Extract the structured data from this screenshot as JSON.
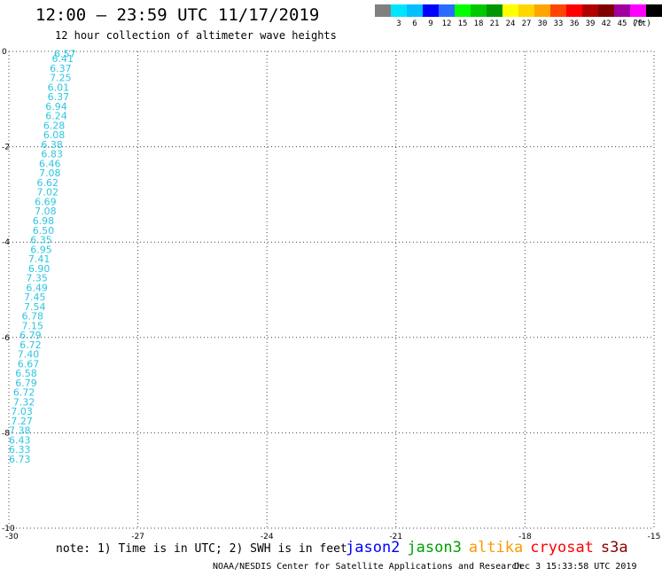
{
  "header": {
    "title": "12:00 – 23:59 UTC 11/17/2019",
    "subtitle": "12 hour collection of altimeter wave heights"
  },
  "colorbar": {
    "unit": "(ft)",
    "bins": [
      {
        "label": "",
        "color": "#808080"
      },
      {
        "label": "3",
        "color": "#00e5ff"
      },
      {
        "label": "6",
        "color": "#00bfff"
      },
      {
        "label": "9",
        "color": "#0000ff"
      },
      {
        "label": "12",
        "color": "#2a6cff"
      },
      {
        "label": "15",
        "color": "#00ff00"
      },
      {
        "label": "18",
        "color": "#00c800"
      },
      {
        "label": "21",
        "color": "#009600"
      },
      {
        "label": "24",
        "color": "#ffff00"
      },
      {
        "label": "27",
        "color": "#ffd700"
      },
      {
        "label": "30",
        "color": "#ffa500"
      },
      {
        "label": "33",
        "color": "#ff4500"
      },
      {
        "label": "36",
        "color": "#ff0000"
      },
      {
        "label": "39",
        "color": "#b00000"
      },
      {
        "label": "42",
        "color": "#800000"
      },
      {
        "label": "45",
        "color": "#a000a0"
      },
      {
        "label": "70",
        "color": "#ff00ff"
      },
      {
        "label": "",
        "color": "#000000"
      }
    ]
  },
  "chart_data": {
    "type": "scatter",
    "xlim": [
      -30,
      -15
    ],
    "ylim": [
      -10,
      0
    ],
    "xticks": [
      -30,
      -27,
      -24,
      -21,
      -18,
      -15
    ],
    "yticks": [
      0,
      -2,
      -4,
      -6,
      -8,
      -10
    ],
    "grid": true,
    "tracks": [
      {
        "satellite": "jason3",
        "color": "#2cc6e0",
        "points": [
          {
            "x": -28.95,
            "y": -0.05,
            "v": "6.57"
          },
          {
            "x": -29.0,
            "y": -0.15,
            "v": "6.41"
          },
          {
            "x": -29.05,
            "y": -0.35,
            "v": "6.37"
          },
          {
            "x": -29.05,
            "y": -0.55,
            "v": "7.25"
          },
          {
            "x": -29.1,
            "y": -0.75,
            "v": "6.01"
          },
          {
            "x": -29.1,
            "y": -0.95,
            "v": "6.37"
          },
          {
            "x": -29.15,
            "y": -1.15,
            "v": "6.94"
          },
          {
            "x": -29.15,
            "y": -1.35,
            "v": "6.24"
          },
          {
            "x": -29.2,
            "y": -1.55,
            "v": "6.28"
          },
          {
            "x": -29.2,
            "y": -1.75,
            "v": "6.08"
          },
          {
            "x": -29.25,
            "y": -1.95,
            "v": "6.38"
          },
          {
            "x": -29.25,
            "y": -2.15,
            "v": "6.83"
          },
          {
            "x": -29.3,
            "y": -2.35,
            "v": "6.46"
          },
          {
            "x": -29.3,
            "y": -2.55,
            "v": "7.08"
          },
          {
            "x": -29.35,
            "y": -2.75,
            "v": "6.62"
          },
          {
            "x": -29.35,
            "y": -2.95,
            "v": "7.02"
          },
          {
            "x": -29.4,
            "y": -3.15,
            "v": "6.69"
          },
          {
            "x": -29.4,
            "y": -3.35,
            "v": "7.08"
          },
          {
            "x": -29.45,
            "y": -3.55,
            "v": "6.98"
          },
          {
            "x": -29.45,
            "y": -3.75,
            "v": "6.50"
          },
          {
            "x": -29.5,
            "y": -3.95,
            "v": "6.35"
          },
          {
            "x": -29.5,
            "y": -4.15,
            "v": "6.95"
          },
          {
            "x": -29.55,
            "y": -4.35,
            "v": "7.41"
          },
          {
            "x": -29.55,
            "y": -4.55,
            "v": "6.90"
          },
          {
            "x": -29.6,
            "y": -4.75,
            "v": "7.35"
          },
          {
            "x": -29.6,
            "y": -4.95,
            "v": "6.49"
          },
          {
            "x": -29.65,
            "y": -5.15,
            "v": "7.45"
          },
          {
            "x": -29.65,
            "y": -5.35,
            "v": "7.54"
          },
          {
            "x": -29.7,
            "y": -5.55,
            "v": "6.78"
          },
          {
            "x": -29.7,
            "y": -5.75,
            "v": "7.15"
          },
          {
            "x": -29.75,
            "y": -5.95,
            "v": "6.79"
          },
          {
            "x": -29.75,
            "y": -6.15,
            "v": "6.72"
          },
          {
            "x": -29.8,
            "y": -6.35,
            "v": "7.40"
          },
          {
            "x": -29.8,
            "y": -6.55,
            "v": "6.67"
          },
          {
            "x": -29.85,
            "y": -6.75,
            "v": "6.58"
          },
          {
            "x": -29.85,
            "y": -6.95,
            "v": "6.79"
          },
          {
            "x": -29.9,
            "y": -7.15,
            "v": "6.72"
          },
          {
            "x": -29.9,
            "y": -7.35,
            "v": "7.32"
          },
          {
            "x": -29.95,
            "y": -7.55,
            "v": "7.03"
          },
          {
            "x": -29.95,
            "y": -7.75,
            "v": "7.27"
          },
          {
            "x": -30.0,
            "y": -7.95,
            "v": "7.38"
          },
          {
            "x": -30.0,
            "y": -8.15,
            "v": "6.43"
          },
          {
            "x": -30.0,
            "y": -8.35,
            "v": "6.33"
          },
          {
            "x": -30.0,
            "y": -8.55,
            "v": "6.73"
          }
        ]
      }
    ]
  },
  "note": "note: 1) Time is in UTC; 2) SWH is in feet",
  "legend": [
    {
      "label": "jason2",
      "color": "#0000ff"
    },
    {
      "label": "jason3",
      "color": "#00a000"
    },
    {
      "label": "altika",
      "color": "#ff9900"
    },
    {
      "label": "cryosat",
      "color": "#ff0000"
    },
    {
      "label": "s3a",
      "color": "#880000"
    }
  ],
  "footer": {
    "credit": "NOAA/NESDIS Center for Satellite Applications and Research",
    "timestamp": "Dec  3 15:33:58 UTC 2019"
  }
}
